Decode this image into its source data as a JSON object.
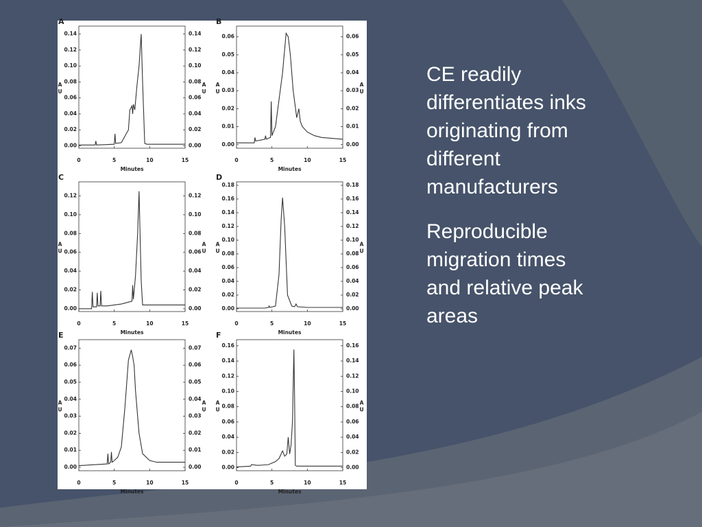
{
  "slide": {
    "paragraphs": [
      "CE readily differentiates inks originating from different manufacturers",
      "Reproducible migration times and relative peak areas"
    ]
  },
  "chart_data": [
    {
      "type": "line",
      "label": "A",
      "xlabel": "Minutes",
      "ylabel": "AU",
      "xlim": [
        0,
        15
      ],
      "xticks": [
        0,
        5,
        10,
        15
      ],
      "ylim": [
        -0.003,
        0.15
      ],
      "yticks": [
        {
          "value": 0,
          "label": "0.00"
        },
        0.02,
        0.04,
        0.06,
        0.08,
        {
          "value": 0.1,
          "label": "0.10"
        },
        0.12,
        0.14
      ],
      "x": [
        0,
        2.3,
        2.4,
        2.5,
        5,
        5.1,
        5.2,
        6,
        7,
        7.2,
        7.5,
        7.6,
        7.7,
        7.9,
        8.0,
        8.2,
        8.5,
        8.8,
        9.0,
        9.3,
        9.6,
        10,
        12,
        15
      ],
      "series": [
        {
          "color": "#333333",
          "values": [
            0.001,
            0.001,
            0.006,
            0.001,
            0.002,
            0.015,
            0.003,
            0.004,
            0.02,
            0.045,
            0.05,
            0.04,
            0.052,
            0.045,
            0.055,
            0.075,
            0.1,
            0.14,
            0.08,
            0.003,
            0.002,
            0.002,
            0.002,
            0.002
          ]
        }
      ]
    },
    {
      "type": "line",
      "label": "B",
      "xlabel": "Minutes",
      "ylabel": "AU",
      "xlim": [
        0,
        15
      ],
      "xticks": [
        0,
        5,
        10,
        15
      ],
      "ylim": [
        -0.002,
        0.066
      ],
      "yticks": [
        {
          "value": 0,
          "label": "0.00"
        },
        0.01,
        0.02,
        0.03,
        0.04,
        0.05,
        0.06
      ],
      "x": [
        0,
        2.5,
        2.6,
        2.7,
        4,
        4.1,
        4.2,
        4.8,
        4.9,
        5.0,
        5.5,
        6.5,
        7,
        7.3,
        7.6,
        8,
        8.5,
        8.8,
        9,
        9.3,
        10,
        11,
        12,
        15
      ],
      "series": [
        {
          "color": "#333333",
          "values": [
            0.001,
            0.001,
            0.004,
            0.002,
            0.003,
            0.005,
            0.003,
            0.004,
            0.024,
            0.005,
            0.01,
            0.04,
            0.062,
            0.06,
            0.05,
            0.03,
            0.015,
            0.02,
            0.013,
            0.01,
            0.007,
            0.005,
            0.004,
            0.003
          ]
        }
      ]
    },
    {
      "type": "line",
      "label": "C",
      "xlabel": "Minutes",
      "ylabel": "AU",
      "xlim": [
        0,
        15
      ],
      "xticks": [
        0,
        5,
        10,
        15
      ],
      "ylim": [
        -0.003,
        0.135
      ],
      "yticks": [
        {
          "value": 0,
          "label": "0.00"
        },
        0.02,
        0.04,
        0.06,
        0.08,
        {
          "value": 0.1,
          "label": "0.10"
        },
        0.12
      ],
      "x": [
        0,
        1.8,
        1.9,
        2.0,
        2.5,
        2.6,
        2.7,
        3.0,
        3.1,
        3.2,
        4,
        5,
        6,
        6.5,
        7.5,
        7.6,
        7.7,
        8,
        8.1,
        8.3,
        8.5,
        8.8,
        9,
        12,
        15
      ],
      "series": [
        {
          "color": "#333333",
          "values": [
            0,
            0,
            0.018,
            0.002,
            0.002,
            0.017,
            0.003,
            0.003,
            0.019,
            0.003,
            0.003,
            0.004,
            0.005,
            0.006,
            0.008,
            0.025,
            0.01,
            0.035,
            0.05,
            0.08,
            0.125,
            0.03,
            0.004,
            0.004,
            0.004
          ]
        }
      ]
    },
    {
      "type": "line",
      "label": "D",
      "xlabel": "Minutes",
      "ylabel": "AU",
      "xlim": [
        0,
        15
      ],
      "xticks": [
        0,
        5,
        10,
        15
      ],
      "ylim": [
        -0.004,
        0.185
      ],
      "yticks": [
        {
          "value": 0,
          "label": "0.00"
        },
        0.02,
        0.04,
        0.06,
        0.08,
        {
          "value": 0.1,
          "label": "0.10"
        },
        0.12,
        0.14,
        0.16,
        0.18
      ],
      "x": [
        0,
        4,
        4.5,
        4.6,
        4.7,
        5.5,
        6,
        6.3,
        6.5,
        6.8,
        7.2,
        7.8,
        8.2,
        8.4,
        8.6,
        10,
        15
      ],
      "series": [
        {
          "color": "#333333",
          "values": [
            0.001,
            0.001,
            0.002,
            0.004,
            0.002,
            0.004,
            0.05,
            0.13,
            0.162,
            0.12,
            0.02,
            0.004,
            0.003,
            0.007,
            0.003,
            0.002,
            0.002
          ]
        }
      ]
    },
    {
      "type": "line",
      "label": "E",
      "xlabel": "Minutes",
      "ylabel": "AU",
      "xlim": [
        0,
        15
      ],
      "xticks": [
        0,
        5,
        10,
        15
      ],
      "ylim": [
        -0.002,
        0.075
      ],
      "yticks": [
        {
          "value": 0,
          "label": "0.00"
        },
        0.01,
        0.02,
        0.03,
        0.04,
        0.05,
        0.06,
        0.07
      ],
      "x": [
        0,
        4,
        4.1,
        4.2,
        4.5,
        4.6,
        4.7,
        5,
        5.5,
        6,
        6.5,
        7,
        7.2,
        7.4,
        7.6,
        7.8,
        8,
        8.5,
        9,
        10,
        11,
        15
      ],
      "series": [
        {
          "color": "#333333",
          "values": [
            0.001,
            0.002,
            0.008,
            0.002,
            0.003,
            0.009,
            0.003,
            0.004,
            0.006,
            0.012,
            0.035,
            0.063,
            0.066,
            0.069,
            0.065,
            0.06,
            0.045,
            0.02,
            0.008,
            0.004,
            0.003,
            0.003
          ]
        }
      ]
    },
    {
      "type": "line",
      "label": "F",
      "xlabel": "Minutes",
      "ylabel": "AU",
      "xlim": [
        0,
        15
      ],
      "xticks": [
        0,
        5,
        10,
        15
      ],
      "ylim": [
        -0.004,
        0.168
      ],
      "yticks": [
        {
          "value": 0,
          "label": "0.00"
        },
        0.02,
        0.04,
        0.06,
        0.08,
        {
          "value": 0.1,
          "label": "0.10"
        },
        0.12,
        0.14,
        0.16
      ],
      "x": [
        0,
        2,
        2.1,
        3,
        4.5,
        5,
        5.5,
        6,
        6.5,
        6.8,
        7.1,
        7.3,
        7.5,
        7.7,
        7.9,
        8.1,
        8.2,
        8.3,
        8.5,
        10,
        15
      ],
      "series": [
        {
          "color": "#333333",
          "values": [
            0.001,
            0.002,
            0.004,
            0.003,
            0.004,
            0.006,
            0.008,
            0.012,
            0.022,
            0.015,
            0.018,
            0.04,
            0.018,
            0.03,
            0.06,
            0.155,
            0.09,
            0.003,
            0.002,
            0.002,
            0.002
          ]
        }
      ]
    }
  ]
}
